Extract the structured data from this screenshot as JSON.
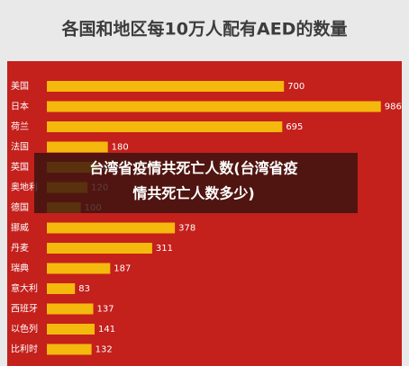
{
  "chart_data": {
    "type": "barh",
    "title": "各国和地区每10万人配有AED的数量",
    "categories": [
      "美国",
      "日本",
      "荷兰",
      "法国",
      "英国",
      "奥地利",
      "德国",
      "挪威",
      "丹麦",
      "瑞典",
      "意大利",
      "西班牙",
      "以色列",
      "比利时"
    ],
    "values": [
      700,
      986,
      695,
      180,
      150,
      120,
      100,
      378,
      311,
      187,
      83,
      137,
      141,
      132
    ],
    "color": "#f5b80c",
    "background": "#c4201c",
    "xlim": [
      0,
      1000
    ],
    "overlay_caption": [
      "台湾省疫情共死亡人数(台湾省疫",
      "情共死亡人数多少)"
    ]
  }
}
